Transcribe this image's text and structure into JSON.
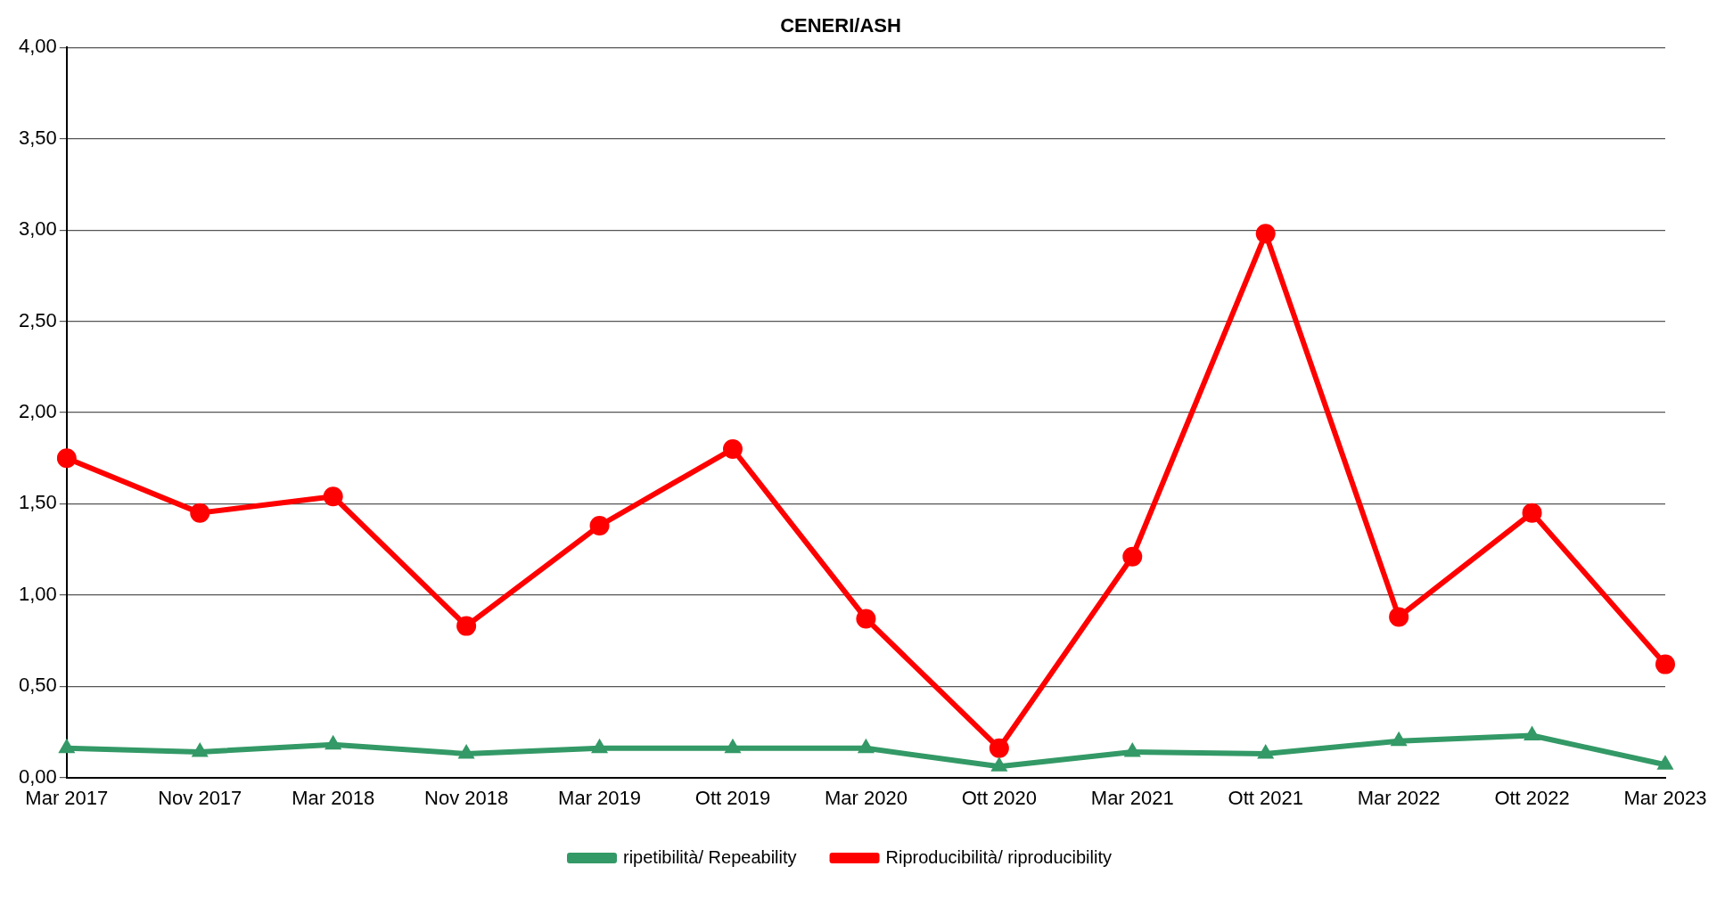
{
  "chart_data": {
    "type": "line",
    "title": "CENERI/ASH",
    "categories": [
      "Mar 2017",
      "Nov 2017",
      "Mar 2018",
      "Nov 2018",
      "Mar 2019",
      "Ott 2019",
      "Mar 2020",
      "Ott 2020",
      "Mar 2021",
      "Ott 2021",
      "Mar 2022",
      "Ott 2022",
      "Mar 2023"
    ],
    "series": [
      {
        "name": "ripetibilità/ Repeability",
        "color": "#339966",
        "marker": "triangle",
        "values": [
          0.16,
          0.14,
          0.18,
          0.13,
          0.16,
          0.16,
          0.16,
          0.06,
          0.14,
          0.13,
          0.2,
          0.23,
          0.07
        ]
      },
      {
        "name": "Riproducibilità/ riproducibility",
        "color": "#ff0000",
        "marker": "circle",
        "values": [
          1.75,
          1.45,
          1.54,
          0.83,
          1.38,
          1.8,
          0.87,
          0.16,
          1.21,
          2.98,
          0.88,
          1.45,
          0.62
        ]
      }
    ],
    "ylim": [
      0,
      4
    ],
    "yticks": [
      {
        "value": 0,
        "label": "0,00"
      },
      {
        "value": 0.5,
        "label": "0,50"
      },
      {
        "value": 1,
        "label": "1,00"
      },
      {
        "value": 1.5,
        "label": "1,50"
      },
      {
        "value": 2,
        "label": "2,00"
      },
      {
        "value": 2.5,
        "label": "2,50"
      },
      {
        "value": 3,
        "label": "3,00"
      },
      {
        "value": 3.5,
        "label": "3,50"
      },
      {
        "value": 4,
        "label": "4,00"
      }
    ],
    "grid": "y",
    "legend": "bottom",
    "line_style": "solid"
  }
}
